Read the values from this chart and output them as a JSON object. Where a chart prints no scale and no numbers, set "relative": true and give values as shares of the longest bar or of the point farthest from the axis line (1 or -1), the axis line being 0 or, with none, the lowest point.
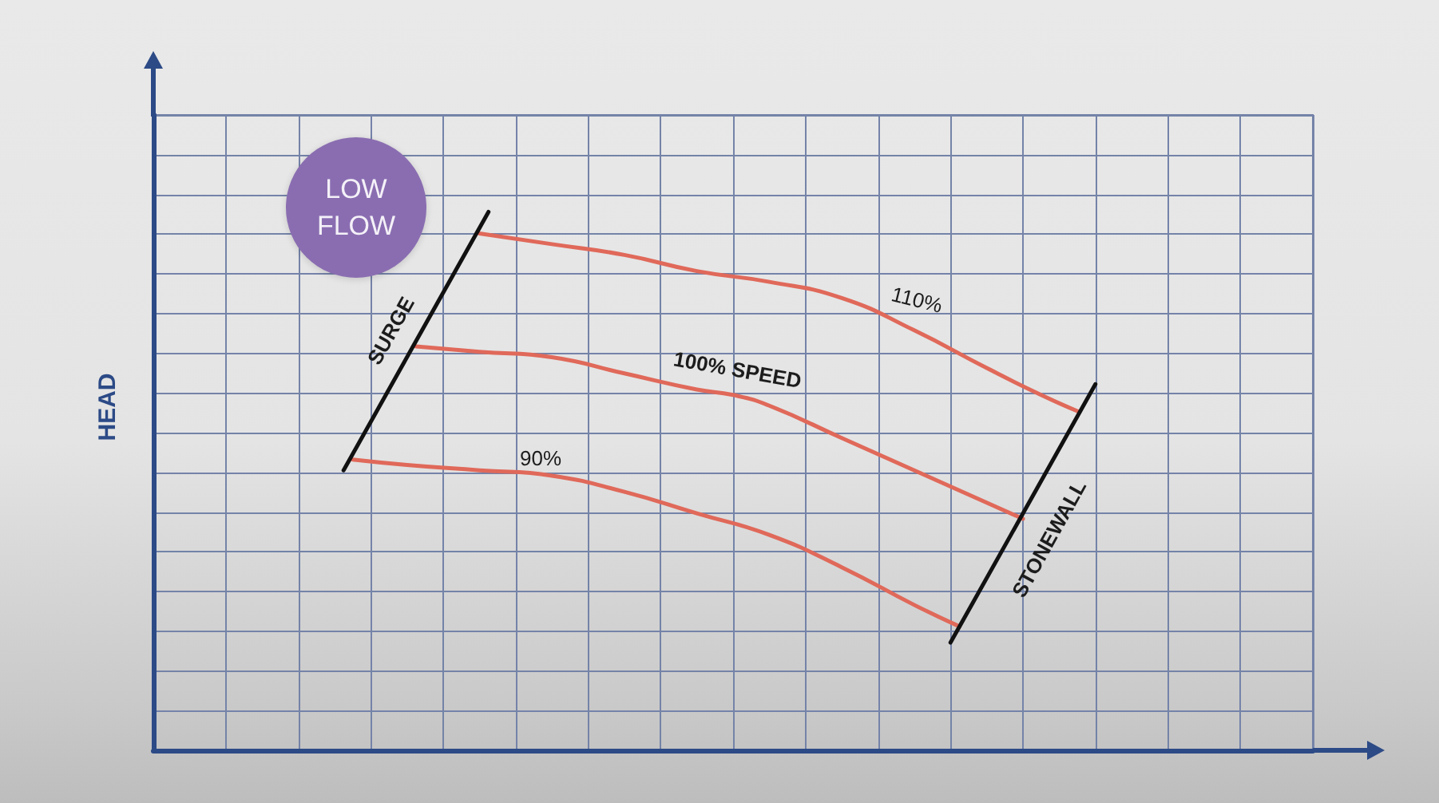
{
  "chart_data": {
    "type": "line",
    "ylabel": "HEAD",
    "relative": true,
    "grid": true,
    "annotations": [
      "LOW FLOW"
    ],
    "categories": [
      null,
      null,
      null,
      null,
      null,
      null,
      null,
      null,
      null,
      null,
      null,
      null,
      null,
      null,
      null,
      null,
      null,
      null,
      null,
      null,
      null,
      null,
      null,
      null,
      null,
      null,
      null,
      null,
      null,
      null,
      null,
      null,
      null,
      null,
      null,
      null,
      null,
      null,
      null,
      null,
      null,
      null,
      null,
      null,
      null,
      null,
      null,
      null,
      null,
      null,
      null,
      null,
      null,
      null,
      null,
      null,
      null,
      null,
      null,
      null,
      null,
      null,
      null,
      null,
      null,
      null,
      null,
      null,
      null,
      null,
      null,
      null,
      null,
      null,
      null,
      null,
      null,
      null,
      null,
      null,
      null,
      null,
      null,
      null,
      null,
      null,
      null,
      null,
      null,
      null,
      null,
      null,
      null,
      null,
      null,
      null,
      null,
      null,
      null,
      null,
      null,
      null,
      null,
      null,
      null,
      null,
      null,
      null,
      null,
      null,
      null,
      null,
      null,
      null,
      null,
      null,
      null,
      null,
      null,
      null,
      null,
      null,
      null,
      null,
      null,
      null,
      null,
      null,
      null
    ],
    "series": [
      {
        "name": "110%",
        "color": "#e0695a",
        "values": [
          null,
          null,
          null,
          null,
          null,
          null,
          null,
          null,
          null,
          null,
          null,
          null,
          null,
          null,
          null,
          null,
          null,
          null,
          null,
          null,
          null,
          null,
          null,
          null,
          null,
          null,
          null,
          null,
          null,
          null,
          null,
          null,
          null,
          null,
          null,
          null,
          0.96,
          null,
          null,
          null,
          null,
          null,
          null,
          null,
          0.94,
          null,
          null,
          null,
          null,
          null,
          null,
          null,
          0.92,
          null,
          null,
          null,
          null,
          null,
          null,
          null,
          0.89,
          null,
          null,
          null,
          null,
          null,
          null,
          null,
          0.87,
          null,
          null,
          null,
          null,
          null,
          null,
          null,
          0.84,
          null,
          null,
          null,
          null,
          null,
          null,
          null,
          0.78,
          null,
          null,
          null,
          null,
          null,
          null,
          null,
          0.71,
          null,
          null,
          null,
          null,
          null,
          0.66,
          null,
          null,
          null,
          0.63,
          null,
          null,
          null,
          null,
          null,
          null,
          null,
          null,
          null,
          null,
          null,
          null,
          null,
          null,
          null,
          null,
          null,
          null,
          null,
          null,
          null,
          null,
          null,
          null,
          null,
          null
        ]
      },
      {
        "name": "100% SPEED",
        "color": "#e0695a",
        "values": [
          null,
          null,
          null,
          null,
          null,
          null,
          null,
          null,
          null,
          null,
          null,
          null,
          null,
          null,
          null,
          null,
          null,
          null,
          null,
          null,
          null,
          null,
          null,
          null,
          null,
          null,
          null,
          null,
          null,
          0.75,
          null,
          null,
          null,
          null,
          null,
          null,
          0.74,
          null,
          null,
          null,
          null,
          null,
          null,
          null,
          0.73,
          null,
          null,
          null,
          null,
          null,
          null,
          null,
          0.7,
          null,
          null,
          null,
          null,
          null,
          null,
          null,
          0.67,
          null,
          null,
          null,
          0.66,
          null,
          null,
          null,
          0.64,
          null,
          null,
          null,
          null,
          null,
          null,
          null,
          0.58,
          null,
          null,
          null,
          null,
          null,
          null,
          null,
          0.52,
          null,
          null,
          null,
          null,
          null,
          null,
          null,
          0.46,
          null,
          null,
          null,
          0.43,
          null,
          null,
          null,
          null,
          null,
          null,
          null,
          null,
          null,
          null,
          null,
          null,
          null,
          null,
          null,
          null,
          null,
          null,
          null,
          null,
          null,
          null,
          null,
          null,
          null,
          null,
          null,
          null,
          null,
          null,
          null,
          null
        ]
      },
      {
        "name": "90%",
        "color": "#e0695a",
        "values": [
          null,
          null,
          null,
          null,
          null,
          null,
          null,
          null,
          null,
          null,
          null,
          null,
          null,
          null,
          null,
          null,
          null,
          null,
          null,
          null,
          null,
          null,
          0.54,
          null,
          null,
          null,
          null,
          null,
          0.53,
          null,
          null,
          null,
          null,
          null,
          null,
          null,
          0.52,
          null,
          null,
          null,
          null,
          null,
          null,
          null,
          0.51,
          null,
          null,
          null,
          null,
          null,
          null,
          null,
          0.48,
          null,
          null,
          null,
          null,
          null,
          null,
          null,
          0.44,
          null,
          null,
          null,
          null,
          null,
          null,
          null,
          0.4,
          null,
          null,
          null,
          null,
          null,
          null,
          null,
          0.34,
          null,
          null,
          null,
          null,
          null,
          null,
          null,
          0.27,
          null,
          null,
          null,
          null,
          0.23,
          null,
          null,
          null,
          null,
          null,
          null,
          null,
          null,
          null,
          null,
          null,
          null,
          null,
          null,
          null,
          null,
          null,
          null,
          null,
          null,
          null,
          null,
          null,
          null,
          null,
          null,
          null,
          null,
          null,
          null,
          null,
          null,
          null,
          null,
          null,
          null,
          null,
          null,
          null
        ]
      },
      {
        "name": "SURGE",
        "color": "#111111",
        "values": [
          null,
          null,
          null,
          null,
          null,
          null,
          null,
          null,
          null,
          null,
          null,
          null,
          null,
          null,
          null,
          null,
          null,
          null,
          null,
          null,
          null,
          0.52,
          null,
          null,
          null,
          null,
          null,
          null,
          null,
          0.76,
          null,
          null,
          null,
          null,
          null,
          null,
          null,
          1,
          null,
          null,
          null,
          null,
          null,
          null,
          null,
          null,
          null,
          null,
          null,
          null,
          null,
          null,
          null,
          null,
          null,
          null,
          null,
          null,
          null,
          null,
          null,
          null,
          null,
          null,
          null,
          null,
          null,
          null,
          null,
          null,
          null,
          null,
          null,
          null,
          null,
          null,
          null,
          null,
          null,
          null,
          null,
          null,
          null,
          null,
          null,
          null,
          null,
          null,
          null,
          null,
          null,
          null,
          null,
          null,
          null,
          null,
          null,
          null,
          null,
          null,
          null,
          null,
          null,
          null,
          null,
          null,
          null,
          null,
          null,
          null,
          null,
          null,
          null,
          null,
          null,
          null,
          null,
          null,
          null,
          null,
          null,
          null,
          null,
          null,
          null,
          null,
          null,
          null,
          null
        ]
      },
      {
        "name": "STONEWALL",
        "color": "#111111",
        "values": [
          null,
          null,
          null,
          null,
          null,
          null,
          null,
          null,
          null,
          null,
          null,
          null,
          null,
          null,
          null,
          null,
          null,
          null,
          null,
          null,
          null,
          null,
          null,
          null,
          null,
          null,
          null,
          null,
          null,
          null,
          null,
          null,
          null,
          null,
          null,
          null,
          null,
          null,
          null,
          null,
          null,
          null,
          null,
          null,
          null,
          null,
          null,
          null,
          null,
          null,
          null,
          null,
          null,
          null,
          null,
          null,
          null,
          null,
          null,
          null,
          null,
          null,
          null,
          null,
          null,
          null,
          null,
          null,
          null,
          null,
          null,
          null,
          null,
          null,
          null,
          null,
          null,
          null,
          null,
          null,
          null,
          null,
          null,
          null,
          null,
          null,
          null,
          null,
          0.2,
          null,
          null,
          null,
          null,
          null,
          null,
          null,
          0.44,
          null,
          null,
          null,
          null,
          null,
          null,
          null,
          0.68,
          null,
          null,
          null,
          null,
          null,
          null,
          null,
          null,
          null,
          null,
          null,
          null,
          null,
          null,
          null,
          null,
          null,
          null,
          null,
          null,
          null,
          null,
          null,
          null
        ]
      }
    ]
  }
}
